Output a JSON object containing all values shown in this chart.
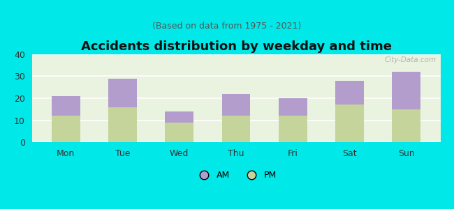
{
  "title": "Accidents distribution by weekday and time",
  "subtitle": "(Based on data from 1975 - 2021)",
  "categories": [
    "Mon",
    "Tue",
    "Wed",
    "Thu",
    "Fri",
    "Sat",
    "Sun"
  ],
  "pm_values": [
    12,
    16,
    9,
    12,
    12,
    17,
    15
  ],
  "am_values": [
    9,
    13,
    5,
    10,
    8,
    11,
    17
  ],
  "am_color": "#b39dcc",
  "pm_color": "#c5d49a",
  "background_color": "#00e8e8",
  "ylim": [
    0,
    40
  ],
  "yticks": [
    0,
    10,
    20,
    30,
    40
  ],
  "bar_width": 0.5,
  "title_fontsize": 13,
  "subtitle_fontsize": 9,
  "tick_fontsize": 9,
  "legend_fontsize": 9,
  "watermark_text": "City-Data.com"
}
